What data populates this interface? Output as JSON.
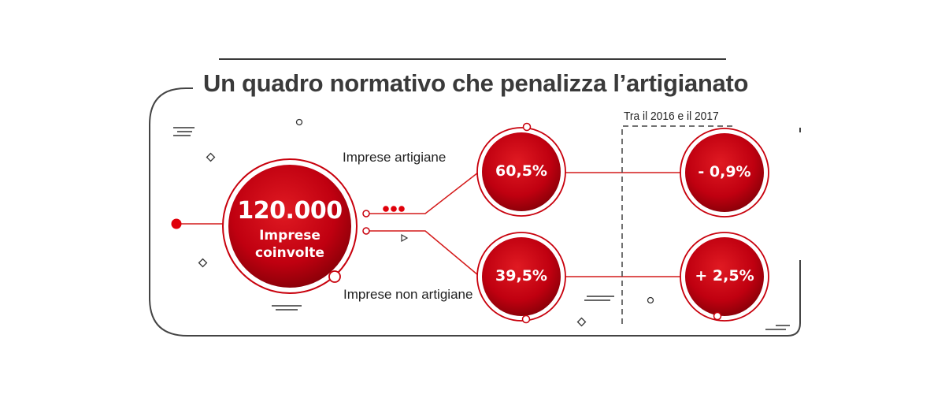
{
  "title": "Un quadro normativo che penalizza l’artigianato",
  "period_label": "Tra il 2016 e il 2017",
  "total": {
    "value": "120.000",
    "line1": "Imprese",
    "line2": "coinvolte"
  },
  "groups": [
    {
      "label": "Imprese artigiane",
      "share": "60,5%",
      "change": "- 0,9%"
    },
    {
      "label": "Imprese non artigiane",
      "share": "39,5%",
      "change": "+ 2,5%"
    }
  ],
  "colors": {
    "accent_red": "#c8000c",
    "circle_dark": "#8c0008",
    "line_red": "#d41a1a",
    "title_gray": "#3a3a3a",
    "frame_gray": "#444444"
  }
}
